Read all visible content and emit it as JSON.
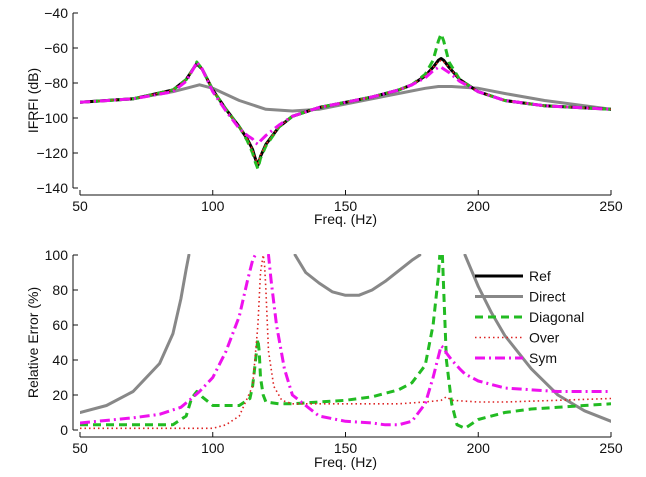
{
  "chart_data": [
    {
      "type": "line",
      "title": "",
      "xlabel": "Freq. (Hz)",
      "ylabel": "IFRFI (dB)",
      "xlim": [
        50,
        250
      ],
      "ylim": [
        -140,
        -40
      ],
      "xticks": [
        50,
        100,
        150,
        200,
        250
      ],
      "yticks": [
        -140,
        -120,
        -100,
        -80,
        -60,
        -40
      ],
      "legend": "none",
      "series": [
        {
          "name": "Ref",
          "color": "#000000",
          "dash": "solid",
          "x": [
            50,
            70,
            85,
            90,
            93,
            94,
            96,
            100,
            105,
            110,
            113,
            115,
            116,
            117,
            118,
            120,
            125,
            130,
            140,
            150,
            160,
            170,
            175,
            180,
            183,
            185,
            186,
            187,
            189,
            193,
            200,
            210,
            225,
            250
          ],
          "y": [
            -91,
            -89,
            -84,
            -78,
            -71,
            -69,
            -72,
            -84,
            -95,
            -105,
            -112,
            -118,
            -123,
            -127,
            -122,
            -115,
            -105,
            -99,
            -94,
            -91,
            -88,
            -84,
            -81,
            -76,
            -71,
            -67,
            -66,
            -67,
            -71,
            -78,
            -85,
            -90,
            -93,
            -95
          ]
        },
        {
          "name": "Direct",
          "color": "#888888",
          "dash": "solid",
          "x": [
            50,
            70,
            85,
            90,
            95,
            100,
            110,
            120,
            130,
            140,
            150,
            160,
            170,
            180,
            185,
            190,
            200,
            210,
            225,
            250
          ],
          "y": [
            -91,
            -89,
            -85,
            -83,
            -81,
            -83,
            -90,
            -95,
            -96,
            -95,
            -92,
            -89,
            -86,
            -83,
            -82,
            -82,
            -83,
            -86,
            -90,
            -95
          ]
        },
        {
          "name": "Diagonal",
          "color": "#22bb22",
          "dash": "8,5",
          "x": [
            50,
            70,
            85,
            90,
            93,
            94,
            96,
            100,
            105,
            110,
            113,
            115,
            116,
            117,
            118,
            120,
            125,
            130,
            140,
            150,
            160,
            170,
            175,
            180,
            183,
            185,
            186,
            187,
            189,
            193,
            200,
            210,
            225,
            250
          ],
          "y": [
            -91,
            -89,
            -84,
            -78,
            -71,
            -68,
            -72,
            -84,
            -95,
            -105,
            -113,
            -120,
            -125,
            -129,
            -123,
            -116,
            -105,
            -99,
            -94,
            -91,
            -88,
            -84,
            -81,
            -75,
            -67,
            -56,
            -52,
            -56,
            -68,
            -78,
            -85,
            -90,
            -93,
            -95
          ]
        },
        {
          "name": "Over",
          "color": "#dd2222",
          "dash": "1.5,3",
          "x": [
            50,
            70,
            85,
            90,
            93,
            94,
            96,
            100,
            105,
            110,
            113,
            115,
            116,
            117,
            118,
            120,
            125,
            130,
            140,
            150,
            160,
            170,
            175,
            180,
            183,
            185,
            186,
            187,
            189,
            193,
            200,
            210,
            225,
            250
          ],
          "y": [
            -91,
            -89,
            -84,
            -78,
            -71,
            -69,
            -72,
            -84,
            -95,
            -105,
            -112,
            -118,
            -123,
            -126,
            -121,
            -115,
            -105,
            -99,
            -94,
            -91,
            -88,
            -84,
            -81,
            -76,
            -71,
            -68,
            -67,
            -68,
            -71,
            -78,
            -85,
            -90,
            -93,
            -95
          ]
        },
        {
          "name": "Sym",
          "color": "#ee11ee",
          "dash": "10,4,2,4",
          "x": [
            50,
            70,
            85,
            90,
            93,
            94,
            96,
            100,
            105,
            110,
            113,
            115,
            116,
            117,
            118,
            120,
            125,
            130,
            140,
            150,
            160,
            170,
            175,
            180,
            183,
            185,
            186,
            187,
            189,
            193,
            200,
            210,
            225,
            250
          ],
          "y": [
            -91,
            -89,
            -85,
            -79,
            -71,
            -68,
            -72,
            -85,
            -96,
            -106,
            -110,
            -112,
            -114,
            -115,
            -113,
            -110,
            -104,
            -99,
            -94,
            -91,
            -88,
            -84,
            -81,
            -77,
            -73,
            -71,
            -71,
            -72,
            -74,
            -79,
            -85,
            -90,
            -93,
            -95
          ]
        }
      ]
    },
    {
      "type": "line",
      "title": "",
      "xlabel": "Freq. (Hz)",
      "ylabel": "Relative Error (%)",
      "xlim": [
        50,
        250
      ],
      "ylim": [
        0,
        100
      ],
      "xticks": [
        50,
        100,
        150,
        200,
        250
      ],
      "yticks": [
        0,
        20,
        40,
        60,
        80,
        100
      ],
      "legend": "right",
      "series": [
        {
          "name": "Ref",
          "color": "#000000",
          "dash": "solid",
          "x": [],
          "y": []
        },
        {
          "name": "Direct",
          "color": "#888888",
          "dash": "solid",
          "segments": [
            {
              "x": [
                50,
                60,
                70,
                80,
                85,
                88,
                90,
                91
              ],
              "y": [
                10,
                14,
                22,
                38,
                55,
                75,
                92,
                100
              ]
            },
            {
              "x": [
                131,
                135,
                140,
                145,
                150,
                155,
                160,
                165,
                170,
                175,
                178
              ],
              "y": [
                100,
                90,
                84,
                79,
                77,
                77,
                80,
                85,
                91,
                97,
                100
              ]
            },
            {
              "x": [
                195,
                200,
                205,
                210,
                220,
                230,
                240,
                250
              ],
              "y": [
                100,
                82,
                67,
                54,
                35,
                20,
                11,
                5
              ]
            }
          ]
        },
        {
          "name": "Diagonal",
          "color": "#22bb22",
          "dash": "8,5",
          "segments": [
            {
              "x": [
                50,
                70,
                85,
                90,
                92,
                94,
                96,
                100,
                105,
                110,
                114,
                115,
                116,
                117,
                117.5,
                118,
                119,
                120,
                125,
                130,
                140,
                150,
                160,
                170,
                175,
                180,
                183,
                185,
                185.5
              ],
              "y": [
                3,
                3,
                3,
                8,
                18,
                22,
                19,
                14,
                14,
                14,
                18,
                25,
                38,
                52,
                45,
                30,
                20,
                16,
                15,
                15,
                16,
                17,
                19,
                23,
                27,
                37,
                60,
                88,
                100
              ]
            },
            {
              "x": [
                186.5,
                187,
                188,
                190,
                192,
                195,
                200,
                210,
                220,
                230,
                240,
                250
              ],
              "y": [
                100,
                80,
                40,
                15,
                3,
                1,
                6,
                10,
                12,
                13,
                14,
                15
              ]
            }
          ]
        },
        {
          "name": "Over",
          "color": "#dd2222",
          "dash": "1.5,3",
          "segments": [
            {
              "x": [
                50,
                70,
                90,
                100,
                105,
                110,
                115,
                117,
                118,
                119,
                119.5,
                120,
                121,
                123,
                126,
                130,
                140,
                150,
                160,
                170,
                180,
                186,
                188,
                190,
                200,
                210,
                230,
                250
              ],
              "y": [
                1,
                1,
                1,
                1,
                3,
                8,
                25,
                60,
                90,
                100,
                95,
                80,
                45,
                25,
                17,
                15,
                15,
                15,
                15,
                15,
                16,
                17,
                19,
                17,
                16,
                16,
                17,
                18
              ]
            }
          ]
        },
        {
          "name": "Sym",
          "color": "#ee11ee",
          "dash": "10,4,2,4",
          "segments": [
            {
              "x": [
                50,
                70,
                80,
                88,
                92,
                95,
                100,
                105,
                110,
                113,
                115,
                116,
                116.5
              ],
              "y": [
                4,
                7,
                9,
                13,
                18,
                22,
                30,
                45,
                65,
                85,
                97,
                100,
                100
              ]
            },
            {
              "x": [
                120.5,
                121,
                122,
                124,
                127,
                130,
                140,
                150,
                160,
                165,
                170,
                175,
                180,
                183,
                185,
                186,
                187,
                188,
                190,
                193,
                195,
                200,
                210,
                220,
                230,
                240,
                250
              ],
              "y": [
                100,
                100,
                85,
                60,
                35,
                20,
                8,
                5,
                4,
                3,
                3,
                5,
                15,
                30,
                42,
                48,
                47,
                44,
                40,
                35,
                32,
                28,
                24,
                23,
                22,
                22,
                22
              ]
            }
          ]
        }
      ]
    }
  ]
}
